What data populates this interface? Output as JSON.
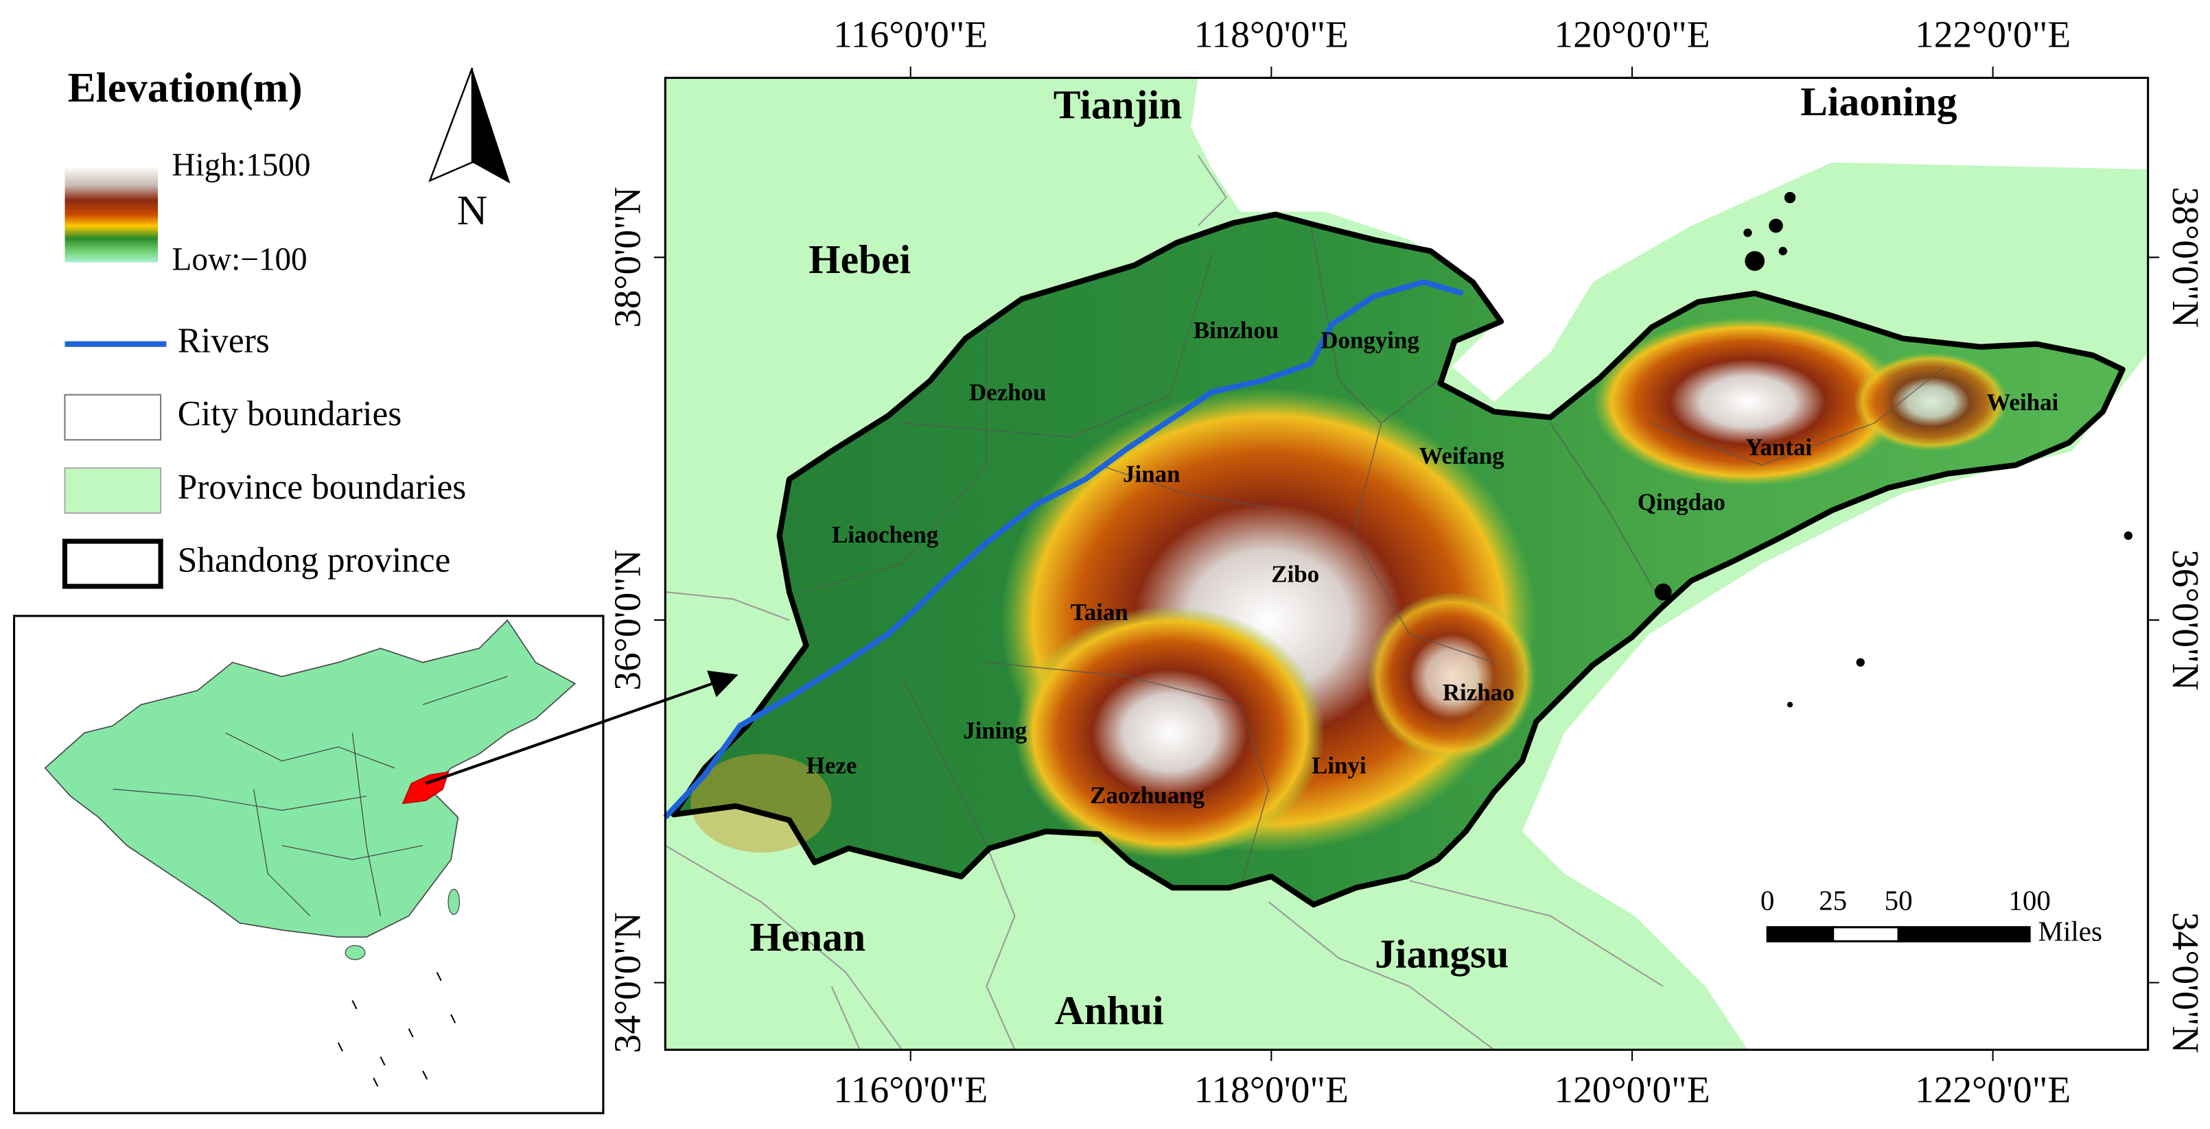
{
  "legend": {
    "title": "Elevation(m)",
    "high": "High:1500",
    "low": "Low:−100",
    "items": [
      "Rivers",
      "City boundaries",
      "Province boundaries",
      "Shandong province"
    ]
  },
  "north_arrow": "N",
  "map": {
    "lon_range": [
      114.64,
      122.86
    ],
    "lat_range": [
      33.63,
      38.99
    ],
    "lon_ticks": [
      {
        "value": 116,
        "label": "116°0'0\"E"
      },
      {
        "value": 118,
        "label": "118°0'0\"E"
      },
      {
        "value": 120,
        "label": "120°0'0\"E"
      },
      {
        "value": 122,
        "label": "122°0'0\"E"
      }
    ],
    "lat_ticks": [
      {
        "value": 38,
        "label": "38°0'0\"N"
      },
      {
        "value": 36,
        "label": "36°0'0\"N"
      },
      {
        "value": 34,
        "label": "34°0'0\"N"
      }
    ]
  },
  "provinces": [
    "Tianjin",
    "Liaoning",
    "Hebei",
    "Henan",
    "Anhui",
    "Jiangsu"
  ],
  "cities": [
    "Binzhou",
    "Dongying",
    "Dezhou",
    "Weifang",
    "Jinan",
    "Liaocheng",
    "Zibo",
    "Taian",
    "Yantai",
    "Weihai",
    "Qingdao",
    "Rizhao",
    "Jining",
    "Heze",
    "Linyi",
    "Zaozhuang"
  ],
  "scale_bar": {
    "ticks": [
      0,
      25,
      50,
      100
    ],
    "unit": "Miles"
  }
}
